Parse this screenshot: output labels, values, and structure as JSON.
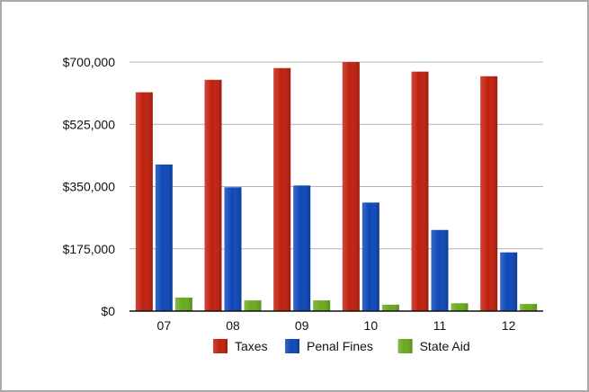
{
  "chart_data": {
    "type": "bar",
    "title": "",
    "xlabel": "",
    "ylabel": "",
    "categories": [
      "07",
      "08",
      "09",
      "10",
      "11",
      "12"
    ],
    "series": [
      {
        "name": "Taxes",
        "values": [
          615000,
          650000,
          683000,
          700000,
          673000,
          660000
        ],
        "color": "#c0200e"
      },
      {
        "name": "Penal Fines",
        "values": [
          412000,
          348000,
          353000,
          305000,
          228000,
          165000
        ],
        "color": "#0d47b8"
      },
      {
        "name": "State Aid",
        "values": [
          38000,
          30000,
          30000,
          18000,
          22000,
          20000
        ],
        "color": "#6aaa1e"
      }
    ],
    "ylim": [
      0,
      700000
    ],
    "yticks": [
      {
        "value": 0,
        "label": "$0"
      },
      {
        "value": 175000,
        "label": "$175,000"
      },
      {
        "value": 350000,
        "label": "$350,000"
      },
      {
        "value": 525000,
        "label": "$525,000"
      },
      {
        "value": 700000,
        "label": "$700,000"
      }
    ],
    "grid": true,
    "legend_position": "bottom"
  }
}
